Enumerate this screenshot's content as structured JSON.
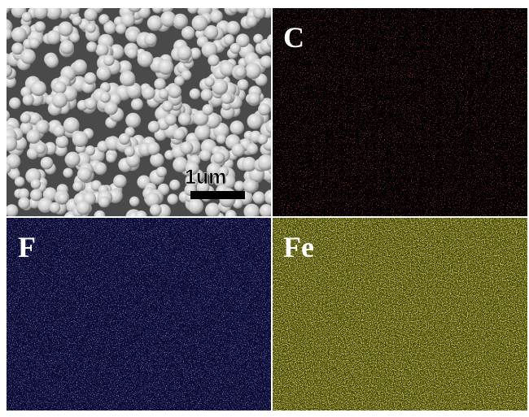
{
  "sem": {
    "scale_bar": "1um"
  },
  "maps": [
    {
      "element": "C"
    },
    {
      "element": "F"
    },
    {
      "element": "Fe"
    }
  ]
}
